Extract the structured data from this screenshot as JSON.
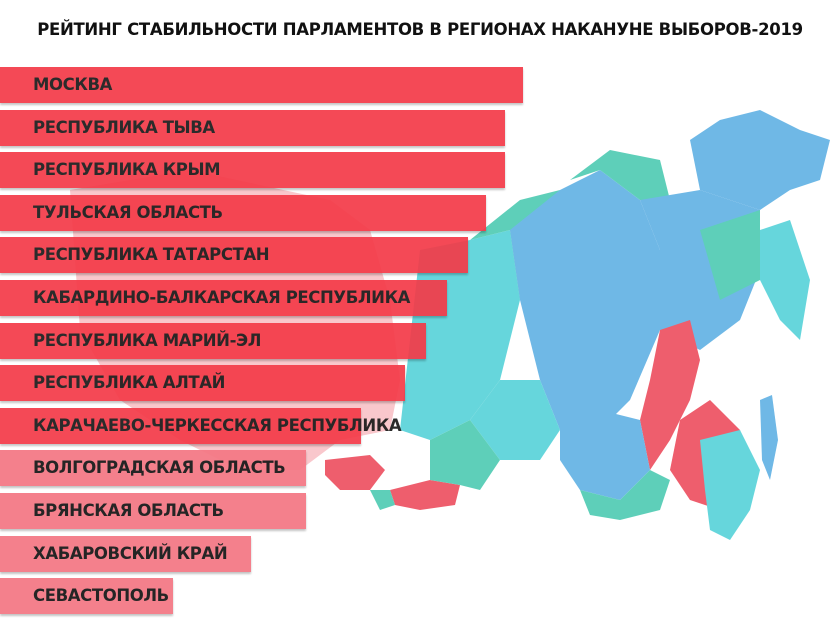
{
  "title": "РЕЙТИНГ СТАБИЛЬНОСТИ ПАРЛАМЕНТОВ В РЕГИОНАХ  НАКАНУНЕ ВЫБОРОВ-2019",
  "colors": {
    "bar_strong": "#f43a48",
    "bar_light": "#f47a86",
    "map_blue": "#6fb8e6",
    "map_cyan": "#66d6dc",
    "map_teal": "#5ecfb9",
    "map_red": "#ee5e6d"
  },
  "chart_data": {
    "type": "bar",
    "orientation": "horizontal",
    "title": "РЕЙТИНГ СТАБИЛЬНОСТИ ПАРЛАМЕНТОВ В РЕГИОНАХ  НАКАНУНЕ ВЫБОРОВ-2019",
    "xlabel": "",
    "ylabel": "",
    "grid": false,
    "categories": [
      "МОСКВА",
      "РЕСПУБЛИКА ТЫВА",
      "РЕСПУБЛИКА КРЫМ",
      "ТУЛЬСКАЯ ОБЛАСТЬ",
      "РЕСПУБЛИКА ТАТАРСТАН",
      "КАБАРДИНО-БАЛКАРСКАЯ РЕСПУБЛИКА",
      "РЕСПУБЛИКА МАРИЙ-ЭЛ",
      "РЕСПУБЛИКА АЛТАЙ",
      "КАРАЧАЕВО-ЧЕРКЕССКАЯ РЕСПУБЛИКА",
      "ВОЛГОГРАДСКАЯ ОБЛАСТЬ",
      "БРЯНСКАЯ ОБЛАСТЬ",
      "ХАБАРОВСКИЙ КРАЙ",
      "СЕВАСТОПОЛЬ"
    ],
    "values": [
      100,
      96.5,
      96.5,
      93,
      89.5,
      85.5,
      81.5,
      77.5,
      69,
      58.5,
      58.5,
      48,
      33
    ],
    "xlim": [
      0,
      100
    ],
    "group_strong_count": 9
  }
}
